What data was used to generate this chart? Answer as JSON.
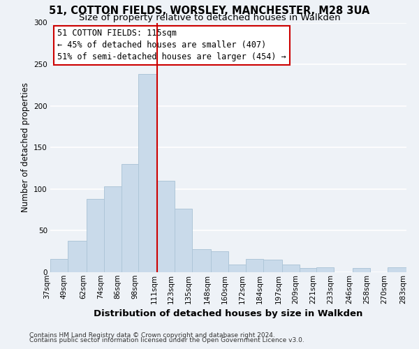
{
  "title": "51, COTTON FIELDS, WORSLEY, MANCHESTER, M28 3UA",
  "subtitle": "Size of property relative to detached houses in Walkden",
  "xlabel": "Distribution of detached houses by size in Walkden",
  "ylabel": "Number of detached properties",
  "bar_color": "#c9daea",
  "bar_edge_color": "#aec6d8",
  "background_color": "#eef2f7",
  "grid_color": "#ffffff",
  "bins": [
    37,
    49,
    62,
    74,
    86,
    98,
    111,
    123,
    135,
    148,
    160,
    172,
    184,
    197,
    209,
    221,
    233,
    246,
    258,
    270,
    283
  ],
  "bin_labels": [
    "37sqm",
    "49sqm",
    "62sqm",
    "74sqm",
    "86sqm",
    "98sqm",
    "111sqm",
    "123sqm",
    "135sqm",
    "148sqm",
    "160sqm",
    "172sqm",
    "184sqm",
    "197sqm",
    "209sqm",
    "221sqm",
    "233sqm",
    "246sqm",
    "258sqm",
    "270sqm",
    "283sqm"
  ],
  "values": [
    16,
    38,
    88,
    103,
    130,
    238,
    110,
    76,
    28,
    25,
    9,
    16,
    15,
    9,
    5,
    6,
    0,
    5,
    0,
    6
  ],
  "vline_x": 111,
  "vline_color": "#cc0000",
  "annotation_line1": "51 COTTON FIELDS: 115sqm",
  "annotation_line2": "← 45% of detached houses are smaller (407)",
  "annotation_line3": "51% of semi-detached houses are larger (454) →",
  "footnote1": "Contains HM Land Registry data © Crown copyright and database right 2024.",
  "footnote2": "Contains public sector information licensed under the Open Government Licence v3.0.",
  "ylim": [
    0,
    300
  ],
  "yticks": [
    0,
    50,
    100,
    150,
    200,
    250,
    300
  ],
  "title_fontsize": 10.5,
  "subtitle_fontsize": 9.5,
  "xlabel_fontsize": 9.5,
  "ylabel_fontsize": 8.5,
  "tick_fontsize": 7.5,
  "annotation_fontsize": 8.5,
  "footnote_fontsize": 6.5
}
